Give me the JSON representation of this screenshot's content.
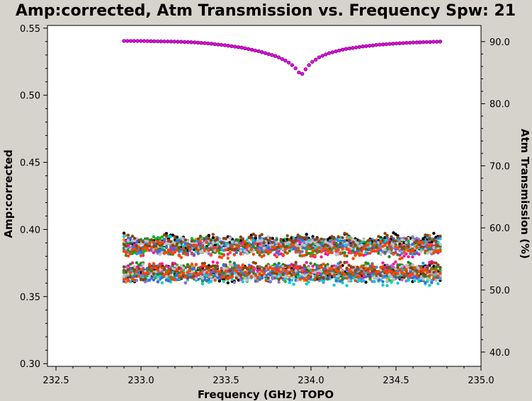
{
  "chart_data": {
    "type": "scatter",
    "title": "Amp:corrected, Atm Transmission vs. Frequency Spw: 21",
    "xlabel": "Frequency (GHz) TOPO",
    "ylabel": "Amp:corrected",
    "y2label": "Atm Transmission (%)",
    "xlim": [
      232.45,
      235.0
    ],
    "ylim": [
      0.298,
      0.552
    ],
    "y2lim": [
      37.7,
      92.6
    ],
    "xticks": [
      "232.5",
      "233.0",
      "233.5",
      "234.0",
      "234.5",
      "235.0"
    ],
    "yticks": [
      "0.30",
      "0.35",
      "0.40",
      "0.45",
      "0.50",
      "0.55"
    ],
    "y2ticks": [
      "40.0",
      "50.0",
      "60.0",
      "70.0",
      "80.0",
      "90.0"
    ],
    "grid": false,
    "legend": "none",
    "x_range": [
      232.9,
      234.76
    ],
    "atm_transmission": {
      "color": "#e600e6",
      "points": [
        [
          232.9,
          90.1
        ],
        [
          233.0,
          90.1
        ],
        [
          233.1,
          90.05
        ],
        [
          233.2,
          90.0
        ],
        [
          233.3,
          89.9
        ],
        [
          233.4,
          89.7
        ],
        [
          233.5,
          89.4
        ],
        [
          233.6,
          89.0
        ],
        [
          233.7,
          88.4
        ],
        [
          233.8,
          87.6
        ],
        [
          233.86,
          86.8
        ],
        [
          233.9,
          86.0
        ],
        [
          233.93,
          85.0
        ],
        [
          233.95,
          84.8
        ],
        [
          233.97,
          85.6
        ],
        [
          234.0,
          86.6
        ],
        [
          234.05,
          87.5
        ],
        [
          234.1,
          88.1
        ],
        [
          234.2,
          88.8
        ],
        [
          234.3,
          89.2
        ],
        [
          234.4,
          89.5
        ],
        [
          234.5,
          89.7
        ],
        [
          234.6,
          89.85
        ],
        [
          234.7,
          89.95
        ],
        [
          234.76,
          90.0
        ]
      ]
    },
    "amplitude_bands": [
      {
        "name": "upper",
        "center": 0.388,
        "halfwidth": 0.0085
      },
      {
        "name": "lower",
        "center": 0.367,
        "halfwidth": 0.0085
      }
    ],
    "series_colors": [
      "#ff8c00",
      "#1e90ff",
      "#00c000",
      "#000000",
      "#ff1493",
      "#9370db",
      "#00ced1",
      "#228b22",
      "#4169e1",
      "#c0c0c0",
      "#8b4513",
      "#ff4500"
    ]
  }
}
